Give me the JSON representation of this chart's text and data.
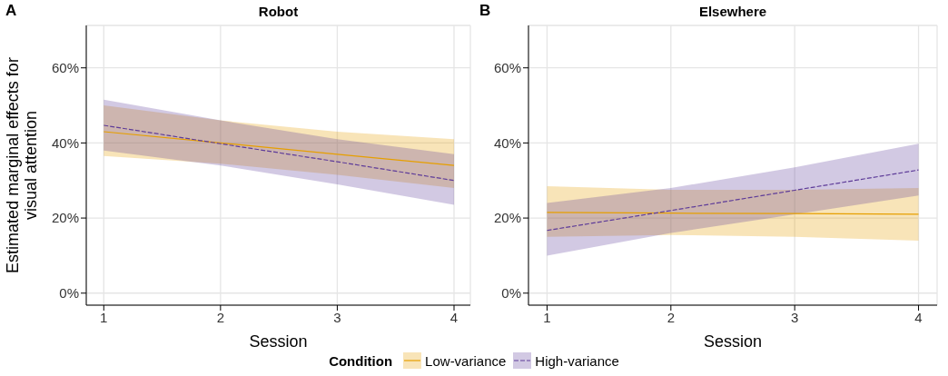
{
  "chart_data": [
    {
      "type": "line",
      "title": "Robot",
      "annotations": [
        "A"
      ],
      "xlabel": "Session",
      "ylabel": "Estimated marginal effects for\nvisual attention",
      "legend_title": "Condition",
      "legend": "bottom",
      "grid": true,
      "x": [
        1,
        2,
        3,
        4
      ],
      "xlim": [
        0.85,
        4.14
      ],
      "xticks": [
        1,
        2,
        3,
        4
      ],
      "ylim": [
        -3.2,
        71.3
      ],
      "yticks": [
        {
          "value": 0,
          "label": "0%"
        },
        {
          "value": 20,
          "label": "20%"
        },
        {
          "value": 40,
          "label": "40%"
        },
        {
          "value": 60,
          "label": "60%"
        }
      ],
      "series": [
        {
          "name": "Low-variance",
          "color": "#e69f00",
          "line_style": "solid",
          "values": [
            43,
            40,
            37,
            34
          ],
          "lower": [
            36.5,
            34.5,
            31.5,
            28
          ],
          "upper": [
            50,
            46,
            43,
            41
          ]
        },
        {
          "name": "High-variance",
          "color": "#5e3c99",
          "line_style": "dashed",
          "values": [
            44.7,
            39.8,
            35,
            30
          ],
          "lower": [
            38,
            34,
            29,
            23.5
          ],
          "upper": [
            51.5,
            46,
            41,
            37
          ]
        }
      ]
    },
    {
      "type": "line",
      "title": "Elsewhere",
      "annotations": [
        "B"
      ],
      "xlabel": "Session",
      "grid": true,
      "x": [
        1,
        2,
        3,
        4
      ],
      "xlim": [
        0.85,
        4.15
      ],
      "xticks": [
        1,
        2,
        3,
        4
      ],
      "ylim": [
        -3.2,
        71.3
      ],
      "yticks": [
        {
          "value": 0,
          "label": "0%"
        },
        {
          "value": 20,
          "label": "20%"
        },
        {
          "value": 40,
          "label": "40%"
        },
        {
          "value": 60,
          "label": "60%"
        }
      ],
      "series": [
        {
          "color": "#e69f00",
          "line_style": "solid",
          "values": [
            21.5,
            21.3,
            21.2,
            21
          ],
          "lower": [
            15,
            15.5,
            15,
            14
          ],
          "upper": [
            28.5,
            27.5,
            27.5,
            28
          ]
        },
        {
          "color": "#5e3c99",
          "line_style": "dashed",
          "values": [
            16.7,
            22,
            27.4,
            32.8
          ],
          "lower": [
            10,
            16,
            21,
            26
          ],
          "upper": [
            24,
            28,
            33.5,
            39.8
          ]
        }
      ]
    }
  ]
}
